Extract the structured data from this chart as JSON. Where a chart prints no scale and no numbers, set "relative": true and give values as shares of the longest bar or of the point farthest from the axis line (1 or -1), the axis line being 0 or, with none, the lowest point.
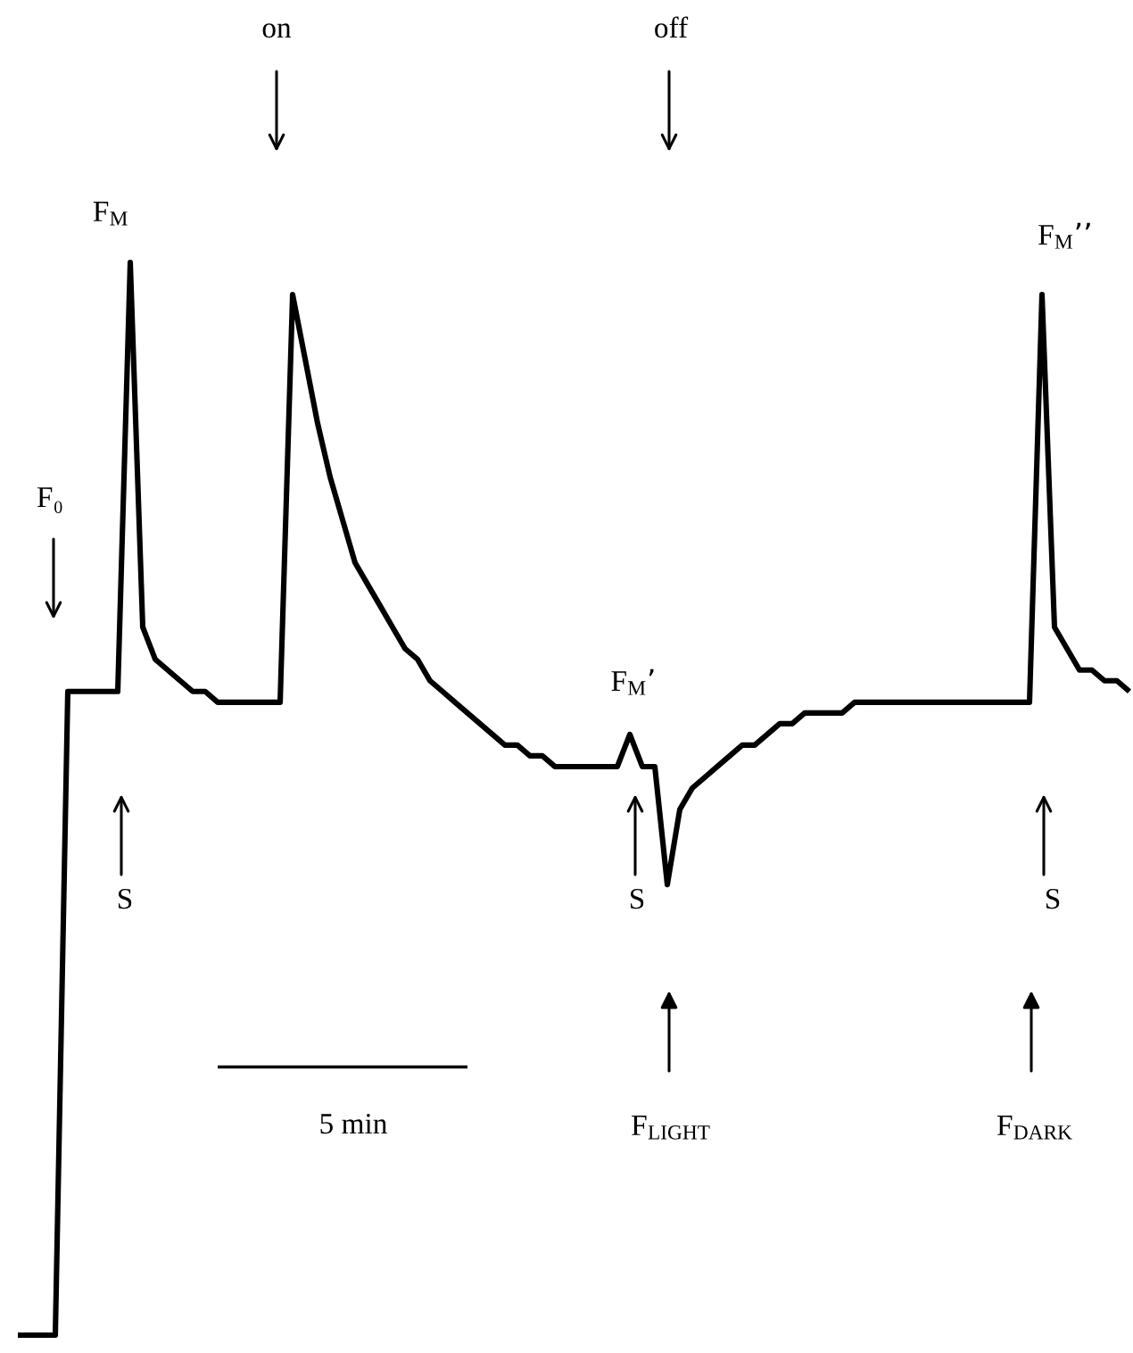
{
  "chart_data": {
    "type": "line",
    "relative": true,
    "categories": [
      null,
      null,
      null,
      null,
      null,
      null,
      null,
      null,
      null,
      null,
      null,
      null,
      null,
      null,
      null,
      null,
      null,
      null,
      null,
      null,
      null,
      null,
      null,
      null,
      null,
      null,
      null,
      null,
      null,
      null,
      null,
      null,
      null,
      null,
      null,
      null,
      null,
      null,
      null,
      null,
      null,
      null,
      null,
      null,
      null,
      null,
      null,
      null,
      null,
      null,
      null,
      null,
      null,
      null,
      null,
      null,
      null,
      null,
      null,
      null,
      null,
      null,
      null,
      null,
      null,
      null,
      null,
      null,
      null,
      null,
      null,
      null,
      null,
      null,
      null,
      null,
      null,
      null,
      null,
      null,
      null,
      null,
      null,
      null,
      null,
      null,
      null,
      null,
      null,
      null
    ],
    "series": [
      {
        "color": "#000000",
        "values": [
          0,
          0,
          0,
          0,
          0.6,
          0.6,
          0.6,
          0.6,
          0.6,
          1,
          0.66,
          0.63,
          0.62,
          0.61,
          0.6,
          0.6,
          0.59,
          0.59,
          0.59,
          0.59,
          0.59,
          0.59,
          0.97,
          0.91,
          0.85,
          0.8,
          0.76,
          0.72,
          0.7,
          0.68,
          0.66,
          0.64,
          0.63,
          0.61,
          0.6,
          0.59,
          0.58,
          0.57,
          0.56,
          0.55,
          0.55,
          0.54,
          0.54,
          0.53,
          0.53,
          0.53,
          0.53,
          0.53,
          0.53,
          0.56,
          0.53,
          0.53,
          0.42,
          0.49,
          0.51,
          0.52,
          0.53,
          0.54,
          0.55,
          0.55,
          0.56,
          0.57,
          0.57,
          0.58,
          0.58,
          0.58,
          0.58,
          0.59,
          0.59,
          0.59,
          0.59,
          0.59,
          0.59,
          0.59,
          0.59,
          0.59,
          0.59,
          0.59,
          0.59,
          0.59,
          0.59,
          0.59,
          0.97,
          0.66,
          0.64,
          0.62,
          0.62,
          0.61,
          0.61,
          0.6
        ]
      },
      {
        "color": "#000000",
        "values": [
          null,
          null,
          null,
          null,
          null,
          null,
          null,
          null,
          null,
          null,
          null,
          null,
          null,
          null,
          null,
          null,
          0.25,
          0.25,
          0.25,
          0.25,
          0.25,
          0.25,
          0.25,
          0.25,
          0.25,
          0.25,
          0.25,
          0.25,
          0.25,
          0.25,
          0.25,
          0.25,
          0.25,
          0.25,
          0.25,
          0.25,
          0.25,
          null,
          null,
          null,
          null,
          null,
          null,
          null,
          null,
          null,
          null,
          null,
          null,
          null,
          null,
          null,
          null,
          null,
          null,
          null,
          null,
          null,
          null,
          null,
          null,
          null,
          null,
          null,
          null,
          null,
          null,
          null,
          null,
          null,
          null,
          null,
          null,
          null,
          null,
          null,
          null,
          null,
          null,
          null,
          null,
          null,
          null,
          null,
          null,
          null,
          null,
          null,
          null,
          null
        ]
      }
    ],
    "annotations": [
      "on",
      "off",
      "F₀",
      "F$_{M}$",
      "S",
      "F$_{M}$’",
      "S",
      "F$_{LIGHT}$",
      "F$_{M}$’’",
      "S",
      "F$_{DARK}$",
      "5 min"
    ]
  }
}
